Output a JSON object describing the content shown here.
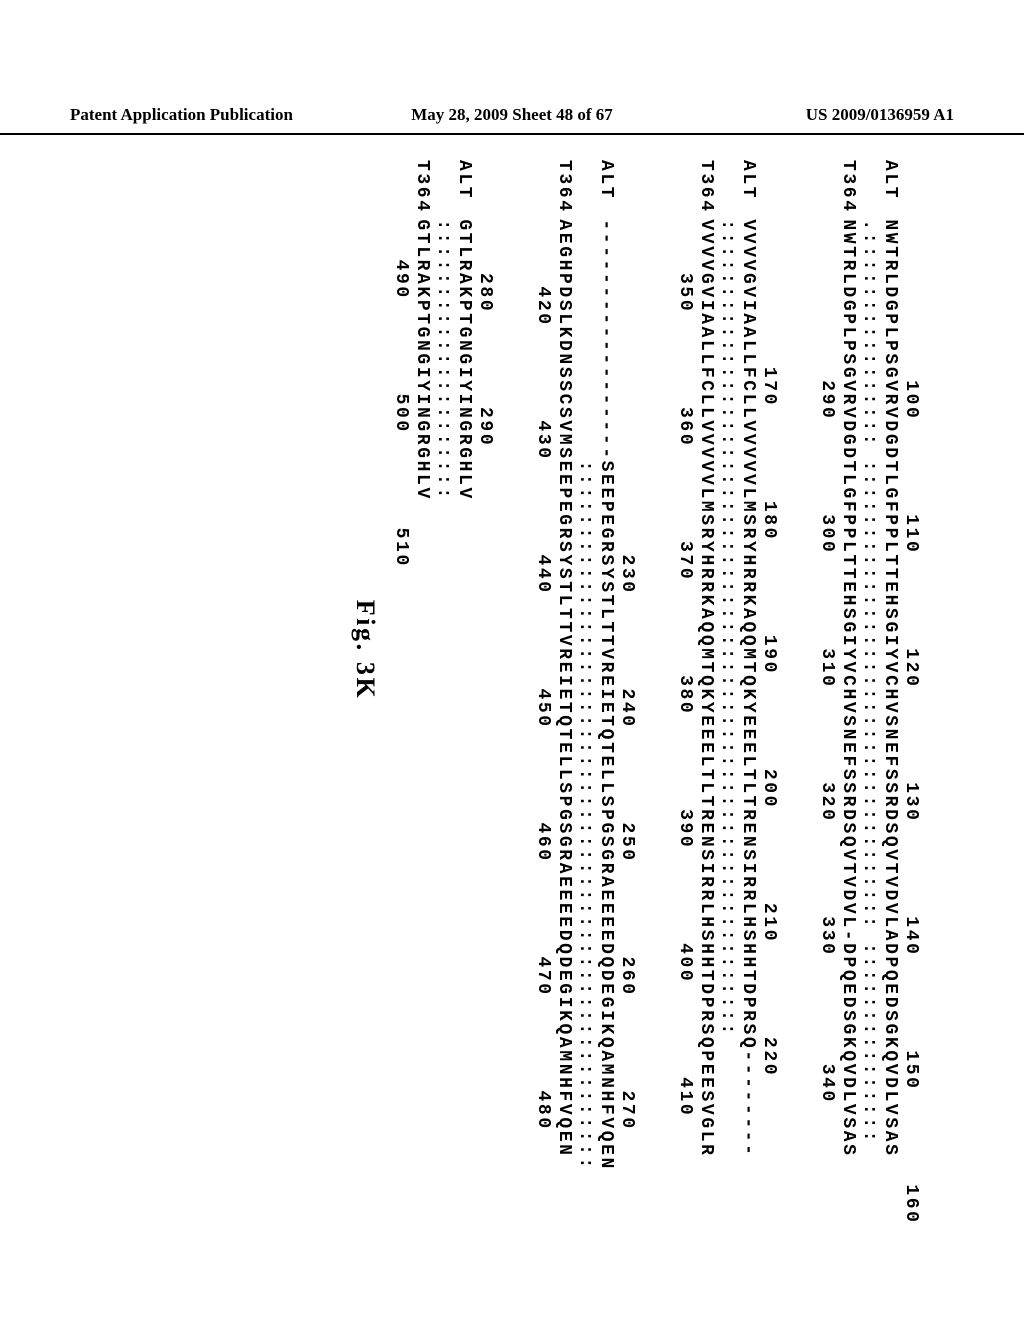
{
  "header": {
    "left": "Patent Application Publication",
    "center": "May 28, 2009  Sheet 48 of 67",
    "right": "US 2009/0136959 A1"
  },
  "figure_label": "Fig. 3K",
  "alignment": {
    "font_family": "Courier New",
    "font_size_pt": 18,
    "rotation_deg": 90,
    "blocks": [
      {
        "ruler_top": "            100       110       120       130       140       150       160",
        "seq1_label": "ALT",
        "seq1": "NWTRLDGPLPSGVRVDGDTLGFPPLTTEHSGIYVCHVSNEFSSRDSQVTVDVLADPQEDSGKQVDLVSAS",
        "match": ".:::::::::::::::: ::::::::::::::::::::::::::::::::::: :::::::::::::::",
        "seq2_label": "T364",
        "seq2": "NWTRLDGPLPSGVRVDGDTLGFPPLTTEHSGIYVCHVSNEFSSRDSQVTVDVL-DPQEDSGKQVDLVSAS",
        "ruler_bottom": "            290       300       310       320       330        340"
      },
      {
        "ruler_top": "           170       180       190       200       210       220",
        "seq1_label": "ALT",
        "seq1": "VVVVGVIAALLFCLLVVVVVLMSRYHRRKAQQMTQKYEEELTLTRENSIRRLHSHHTDPRSQ--------",
        "match": ":::::::::::::::::::::::::::::::::::::::::::::::::::::::::::::",
        "seq2_label": "T364",
        "seq2": "VVVVGVIAALLFCLLVVVVVLMSRYHRRKAQQMTQKYEEELTLTRENSIRRLHSHHTDPRSQPEESVGLR",
        "ruler_bottom": "    350       360       370       380       390       400       410"
      },
      {
        "ruler_top": "                         230       240       250       260       270",
        "seq1_label": "ALT",
        "seq1": "------------------SEEPEGRSYSTLTTVREIETQTELLSPGSGRAEEEEDQDEGIKQAMNHFVQEN",
        "match": "                  :::::::::::::::::::::::::::::::::::::::::::::::::::::",
        "seq2_label": "T364",
        "seq2": "AEGHPDSLKDNSSCSVMSEEPEGRSYSTLTTVREIETQTELLSPGSGRAEEEEDQDEGIKQAMNHFVQEN",
        "ruler_bottom": "     420       430       440       450       460       470       480"
      },
      {
        "ruler_top": "    280       290",
        "seq1_label": "ALT",
        "seq1": "GTLRAKPTGNGIYINGRGHLV",
        "match": ":::::::::::::::::::::",
        "seq2_label": "T364",
        "seq2": "GTLRAKPTGNGIYINGRGHLV",
        "ruler_bottom": "   490       500       510"
      }
    ]
  }
}
